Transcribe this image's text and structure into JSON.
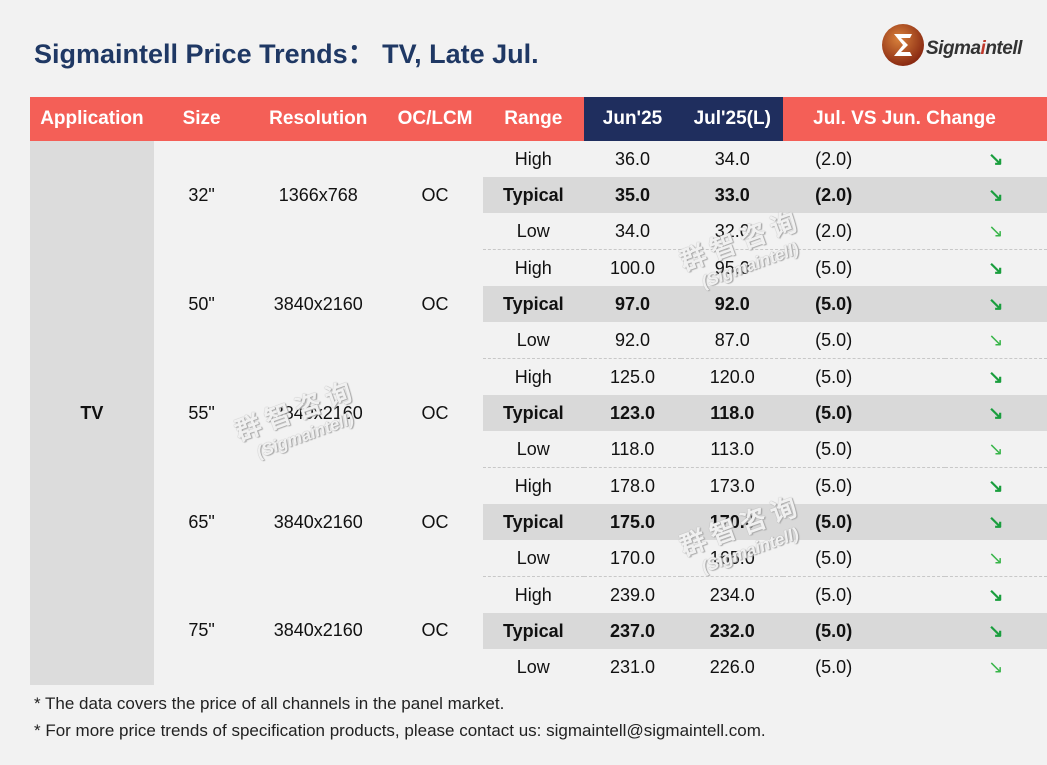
{
  "title": "Sigmaintell Price Trends： TV, Late Jul.",
  "logo": {
    "text_main": "Sigma",
    "text_accent": "i",
    "text_rest": "ntell"
  },
  "headers": [
    "Application",
    "Size",
    "Resolution",
    "OC/LCM",
    "Range",
    "Jun'25",
    "Jul'25(L)",
    "Jul. VS Jun. Change"
  ],
  "application": "TV",
  "groups": [
    {
      "size": "32\"",
      "resolution": "1366x768",
      "type": "OC",
      "rows": [
        {
          "range": "High",
          "jun": "36.0",
          "jul": "34.0",
          "change": "(2.0)",
          "arrow": "↘"
        },
        {
          "range": "Typical",
          "jun": "35.0",
          "jul": "33.0",
          "change": "(2.0)",
          "arrow": "↘"
        },
        {
          "range": "Low",
          "jun": "34.0",
          "jul": "32.0",
          "change": "(2.0)",
          "arrow": "↘"
        }
      ]
    },
    {
      "size": "50\"",
      "resolution": "3840x2160",
      "type": "OC",
      "rows": [
        {
          "range": "High",
          "jun": "100.0",
          "jul": "95.0",
          "change": "(5.0)",
          "arrow": "↘"
        },
        {
          "range": "Typical",
          "jun": "97.0",
          "jul": "92.0",
          "change": "(5.0)",
          "arrow": "↘"
        },
        {
          "range": "Low",
          "jun": "92.0",
          "jul": "87.0",
          "change": "(5.0)",
          "arrow": "↘"
        }
      ]
    },
    {
      "size": "55\"",
      "resolution": "3840x2160",
      "type": "OC",
      "rows": [
        {
          "range": "High",
          "jun": "125.0",
          "jul": "120.0",
          "change": "(5.0)",
          "arrow": "↘"
        },
        {
          "range": "Typical",
          "jun": "123.0",
          "jul": "118.0",
          "change": "(5.0)",
          "arrow": "↘"
        },
        {
          "range": "Low",
          "jun": "118.0",
          "jul": "113.0",
          "change": "(5.0)",
          "arrow": "↘"
        }
      ]
    },
    {
      "size": "65\"",
      "resolution": "3840x2160",
      "type": "OC",
      "rows": [
        {
          "range": "High",
          "jun": "178.0",
          "jul": "173.0",
          "change": "(5.0)",
          "arrow": "↘"
        },
        {
          "range": "Typical",
          "jun": "175.0",
          "jul": "170.0",
          "change": "(5.0)",
          "arrow": "↘"
        },
        {
          "range": "Low",
          "jun": "170.0",
          "jul": "165.0",
          "change": "(5.0)",
          "arrow": "↘"
        }
      ]
    },
    {
      "size": "75\"",
      "resolution": "3840x2160",
      "type": "OC",
      "rows": [
        {
          "range": "High",
          "jun": "239.0",
          "jul": "234.0",
          "change": "(5.0)",
          "arrow": "↘"
        },
        {
          "range": "Typical",
          "jun": "237.0",
          "jul": "232.0",
          "change": "(5.0)",
          "arrow": "↘"
        },
        {
          "range": "Low",
          "jun": "231.0",
          "jul": "226.0",
          "change": "(5.0)",
          "arrow": "↘"
        }
      ]
    }
  ],
  "notes": [
    "* The data covers the price of all channels in the panel market.",
    "* For more price trends of specification products, please contact us: sigmaintell@sigmaintell.com."
  ],
  "watermark": {
    "cn": "群智咨询",
    "en": "(Sigmaintell)"
  },
  "colors": {
    "header": "#f45f57",
    "header_dark": "#1f2e5e",
    "title": "#1f3864",
    "negative": "#e00000",
    "arrow": "#1a9e3e"
  }
}
